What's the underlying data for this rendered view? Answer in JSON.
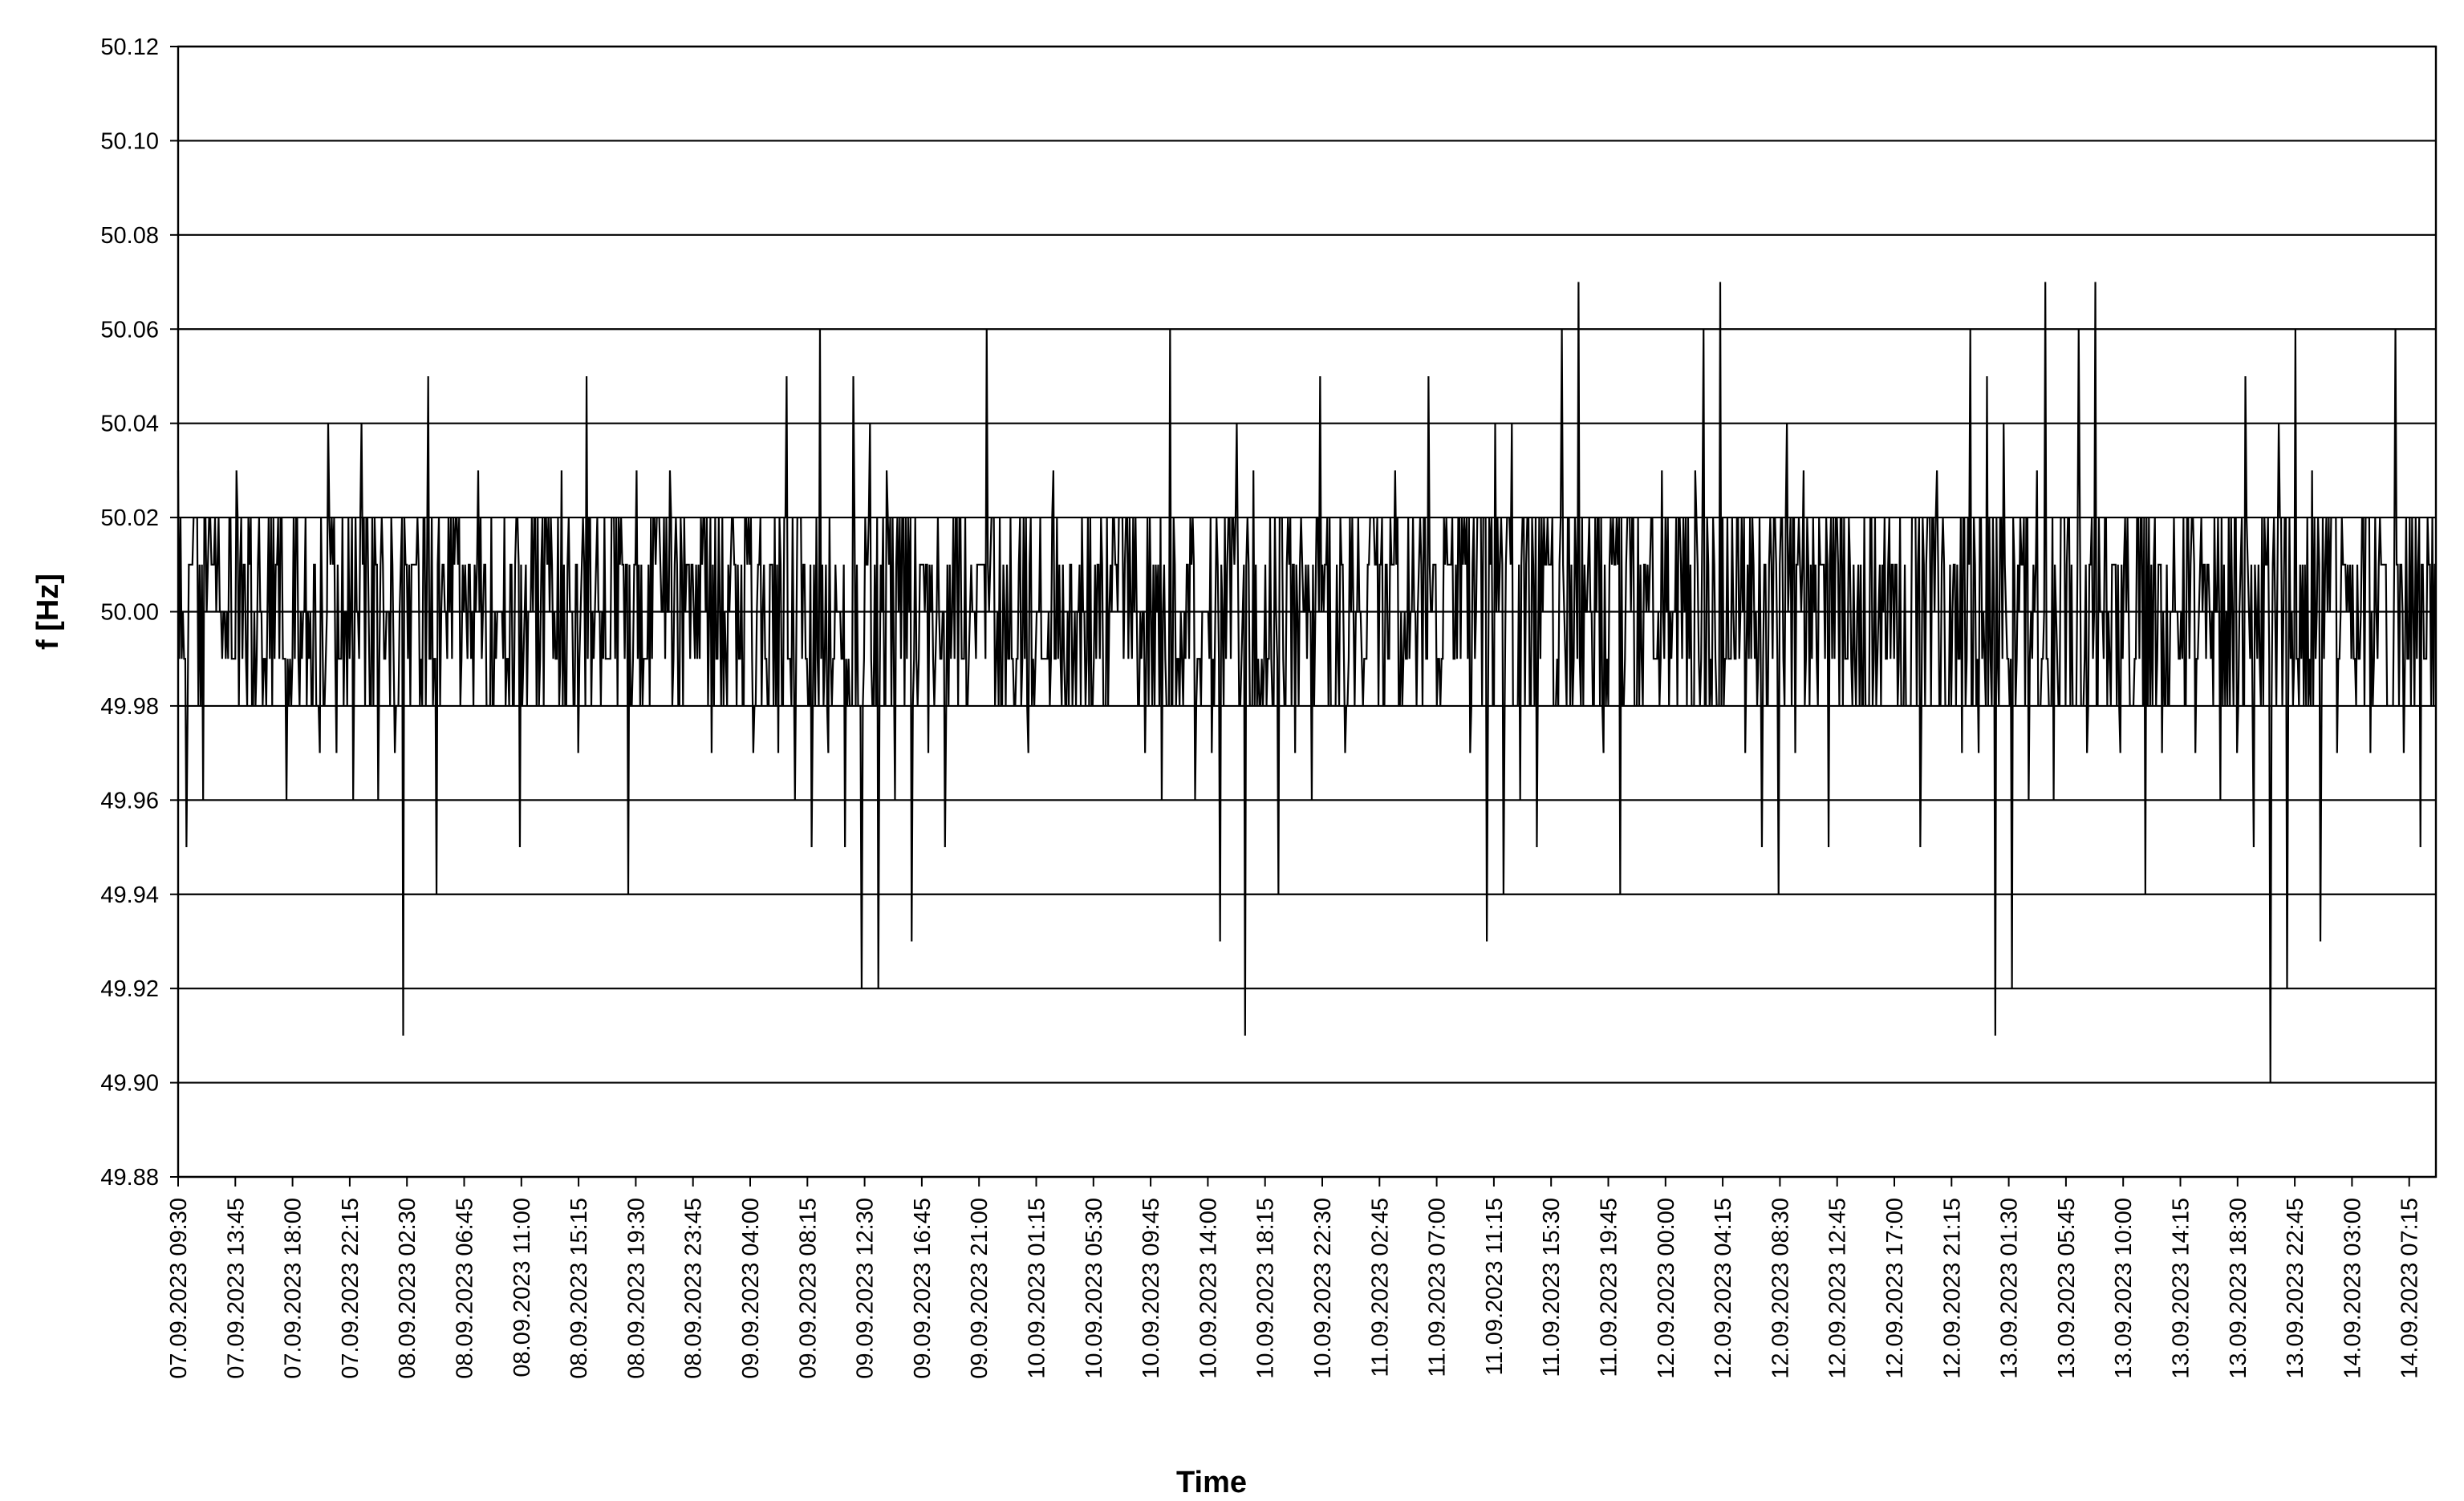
{
  "chart_data": {
    "type": "line",
    "title": "",
    "xlabel": "Time",
    "ylabel": "f [Hz]",
    "ylim": [
      49.88,
      50.12
    ],
    "y_ticks": [
      "49.88",
      "49.90",
      "49.92",
      "49.94",
      "49.96",
      "49.98",
      "50.00",
      "50.02",
      "50.04",
      "50.06",
      "50.08",
      "50.10",
      "50.12"
    ],
    "x_tick_labels": [
      "07.09.2023 09:30",
      "07.09.2023 13:45",
      "07.09.2023 18:00",
      "07.09.2023 22:15",
      "08.09.2023 02:30",
      "08.09.2023 06:45",
      "08.09.2023 11:00",
      "08.09.2023 15:15",
      "08.09.2023 19:30",
      "08.09.2023 23:45",
      "09.09.2023 04:00",
      "09.09.2023 08:15",
      "09.09.2023 12:30",
      "09.09.2023 16:45",
      "09.09.2023 21:00",
      "10.09.2023 01:15",
      "10.09.2023 05:30",
      "10.09.2023 09:45",
      "10.09.2023 14:00",
      "10.09.2023 18:15",
      "10.09.2023 22:30",
      "11.09.2023 02:45",
      "11.09.2023 07:00",
      "11.09.2023 11:15",
      "11.09.2023 15:30",
      "11.09.2023 19:45",
      "12.09.2023 00:00",
      "12.09.2023 04:15",
      "12.09.2023 08:30",
      "12.09.2023 12:45",
      "12.09.2023 17:00",
      "12.09.2023 21:15",
      "13.09.2023 01:30",
      "13.09.2023 05:45",
      "13.09.2023 10:00",
      "13.09.2023 14:15",
      "13.09.2023 18:30",
      "13.09.2023 22:45",
      "14.09.2023 03:00",
      "14.09.2023 07:15"
    ],
    "x_range": [
      "07.09.2023 09:30",
      "14.09.2023 10:00"
    ],
    "sample_interval": "15 min",
    "grid": "horizontal",
    "legend": "none",
    "series": [
      {
        "values_resolution": "approximate, read at roughly hourly resolution from the plot",
        "values": [
          50.03,
          49.95,
          50.02,
          49.96,
          50.01,
          50.0,
          49.99,
          50.03,
          50.01,
          49.98,
          50.0,
          49.99,
          50.02,
          49.96,
          49.99,
          50.0,
          49.98,
          49.97,
          50.04,
          49.97,
          50.0,
          49.96,
          50.04,
          49.98,
          49.96,
          50.0,
          49.97,
          49.91,
          50.01,
          49.98,
          50.05,
          49.94,
          50.0,
          50.02,
          49.99,
          50.01,
          50.03,
          49.98,
          50.0,
          49.99,
          50.01,
          49.95,
          50.0,
          49.98,
          50.02,
          49.99,
          50.03,
          50.0,
          49.97,
          50.05,
          50.0,
          49.99,
          50.02,
          50.01,
          49.94,
          50.03,
          49.99,
          50.02,
          50.0,
          50.03,
          49.98,
          50.01,
          49.99,
          50.02,
          49.97,
          50.0,
          50.01,
          49.98,
          50.02,
          49.97,
          49.98,
          50.01,
          49.97,
          50.05,
          49.96,
          50.01,
          49.95,
          50.06,
          49.97,
          50.0,
          49.95,
          50.05,
          49.92,
          50.04,
          49.92,
          50.03,
          49.96,
          50.02,
          49.93,
          50.01,
          49.97,
          50.0,
          49.95,
          50.02,
          49.99,
          50.0,
          50.01,
          50.06,
          49.98,
          50.01,
          49.99,
          50.02,
          49.97,
          50.0,
          49.99,
          50.03,
          49.98,
          50.01,
          50.0,
          49.99,
          50.01,
          49.98,
          50.0,
          50.02,
          49.99,
          50.0,
          49.97,
          50.01,
          49.96,
          50.06,
          49.99,
          50.01,
          49.96,
          50.0,
          49.97,
          49.93,
          50.02,
          50.04,
          49.91,
          50.03,
          49.99,
          50.02,
          49.94,
          50.01,
          49.97,
          50.0,
          49.96,
          50.05,
          49.98,
          50.01,
          49.97,
          50.0,
          49.99,
          50.02,
          49.98,
          50.01,
          50.03,
          49.99,
          50.0,
          50.02,
          50.05,
          49.98,
          50.01,
          49.99,
          50.02,
          49.97,
          50.02,
          49.93,
          50.04,
          49.94,
          50.04,
          49.96,
          50.02,
          49.95,
          50.01,
          49.98,
          50.06,
          49.98,
          50.07,
          50.0,
          50.02,
          49.97,
          50.01,
          49.94,
          50.02,
          49.98,
          50.01,
          49.99,
          50.03,
          50.0,
          50.02,
          49.98,
          50.03,
          50.06,
          49.98,
          50.07,
          49.99,
          50.02,
          49.97,
          50.01,
          49.95,
          50.02,
          49.94,
          50.04,
          49.97,
          50.03,
          49.99,
          50.01,
          49.95,
          50.02,
          49.99,
          50.01,
          49.98,
          50.02,
          50.0,
          49.99,
          50.01,
          49.98,
          50.02,
          49.95,
          50.02,
          50.03,
          49.98,
          50.01,
          49.97,
          50.06,
          49.97,
          50.05,
          49.91,
          50.04,
          49.92,
          50.02,
          49.96,
          50.03,
          50.07,
          49.96,
          50.02,
          49.98,
          50.06,
          49.97,
          50.07,
          49.99,
          50.01,
          49.97,
          50.0,
          50.02,
          49.94,
          50.01,
          49.97,
          50.0,
          49.99,
          50.02,
          49.97,
          50.01,
          50.0,
          49.96,
          50.02,
          49.97,
          50.05,
          49.95,
          50.02,
          49.9,
          50.04,
          49.92,
          50.06,
          49.98,
          50.03,
          49.93,
          50.02,
          49.97,
          50.01,
          49.99,
          50.02,
          49.97,
          50.01,
          49.98,
          50.06,
          49.97,
          50.02,
          49.95,
          50.01
        ]
      }
    ]
  }
}
